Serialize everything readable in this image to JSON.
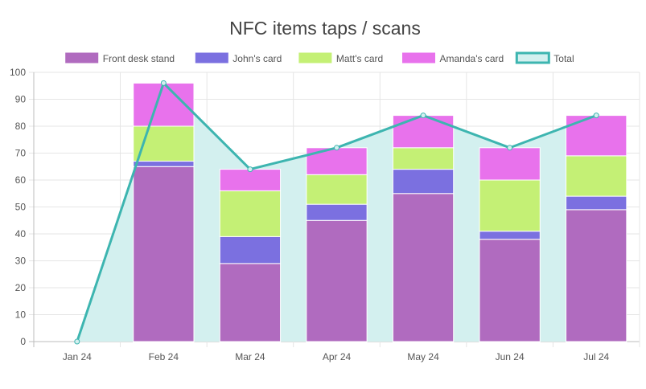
{
  "chart_data": {
    "type": "bar",
    "title": "NFC items taps / scans",
    "categories": [
      "Jan 24",
      "Feb 24",
      "Mar 24",
      "Apr 24",
      "May 24",
      "Jun 24",
      "Jul 24"
    ],
    "ylim": [
      0,
      100
    ],
    "yticks": [
      0,
      10,
      20,
      30,
      40,
      50,
      60,
      70,
      80,
      90,
      100
    ],
    "grid": true,
    "legend": "top",
    "stacked": true,
    "series": [
      {
        "name": "Front desk stand",
        "color": "#b06bbf",
        "values": [
          0,
          65,
          29,
          45,
          55,
          38,
          49
        ]
      },
      {
        "name": "John's card",
        "color": "#7b70e0",
        "values": [
          0,
          2,
          10,
          6,
          9,
          3,
          5
        ]
      },
      {
        "name": "Matt's card",
        "color": "#c4f075",
        "values": [
          0,
          13,
          17,
          11,
          8,
          19,
          15
        ]
      },
      {
        "name": "Amanda's card",
        "color": "#e872ec",
        "values": [
          0,
          16,
          8,
          10,
          12,
          12,
          15
        ]
      }
    ],
    "total": {
      "name": "Total",
      "type": "area-line",
      "line_color": "#3db5b0",
      "fill_color": "#d3f0ef",
      "values": [
        0,
        96,
        64,
        72,
        84,
        72,
        84
      ]
    }
  }
}
